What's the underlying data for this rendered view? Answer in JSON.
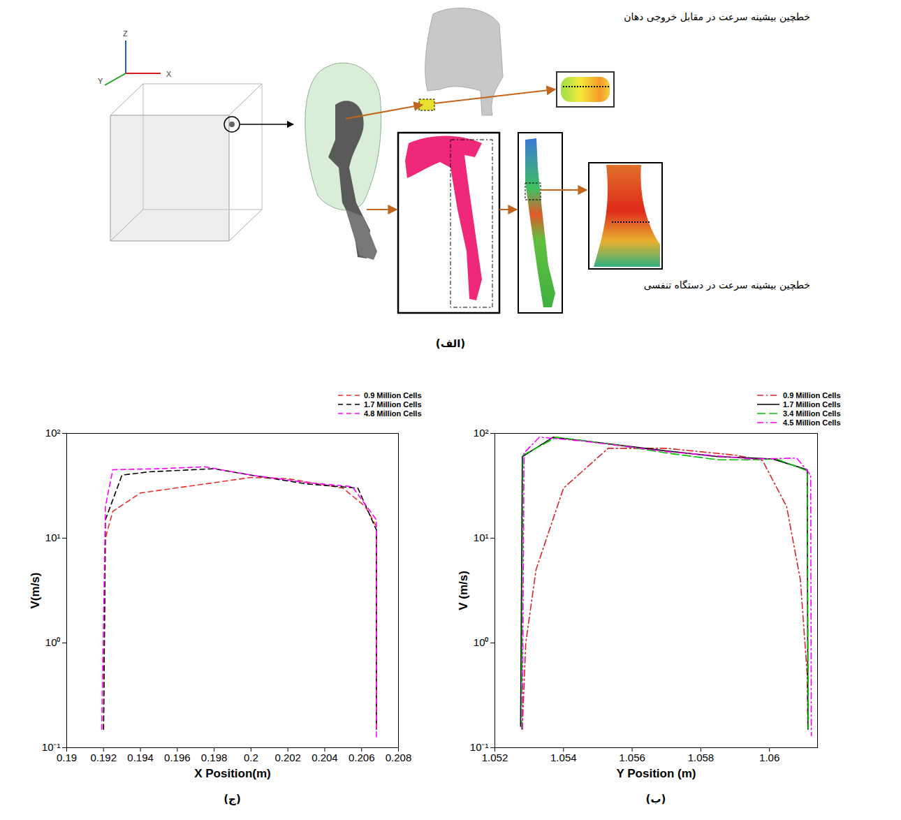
{
  "diagram": {
    "axis_letters": [
      "X",
      "Y",
      "Z"
    ],
    "annotations": [
      "خطچین بیشینه سرعت در مقابل خروجی دهان",
      "خطچین بیشینه سرعت در دستگاه تنفسی"
    ],
    "panel_label": "(الف)"
  },
  "chart_data": [
    {
      "type": "line",
      "panel_label": "(ج)",
      "x_label": "X Position(m)",
      "y_label": "V(m/s)",
      "log": "y",
      "legend": "top right",
      "xlim": [
        0.19,
        0.208
      ],
      "xticks": [
        0.19,
        0.192,
        0.194,
        0.196,
        0.198,
        0.2,
        0.202,
        0.204,
        0.206,
        0.208
      ],
      "ylim": [
        0.1,
        100
      ],
      "yticks": [
        {
          "value": 0.1,
          "label": "10⁻¹"
        },
        {
          "value": 1,
          "label": "10⁰"
        },
        {
          "value": 10,
          "label": "10¹"
        },
        {
          "value": 100,
          "label": "10²"
        }
      ],
      "series": [
        {
          "name": "0.9 Million Cells",
          "color": "#e8322a",
          "line_style": "dashed",
          "x": [
            0.192,
            0.1921,
            0.1925,
            0.194,
            0.197,
            0.2,
            0.202,
            0.205,
            0.2062,
            0.2068,
            0.2068
          ],
          "values": [
            0.15,
            10,
            18,
            27,
            32,
            38,
            37,
            30,
            20,
            13,
            0.15
          ]
        },
        {
          "name": "1.7 Million Cells",
          "color": "#000000",
          "line_style": "dashed",
          "x": [
            0.192,
            0.1921,
            0.193,
            0.1945,
            0.198,
            0.2,
            0.203,
            0.2058,
            0.2068,
            0.2068
          ],
          "values": [
            0.15,
            15,
            40,
            43,
            46,
            40,
            33,
            30,
            12,
            0.15
          ]
        },
        {
          "name": "4.8 Million Cells",
          "color": "#ff00ff",
          "line_style": "dashed",
          "x": [
            0.1919,
            0.1921,
            0.1925,
            0.195,
            0.1975,
            0.2,
            0.203,
            0.2055,
            0.2068,
            0.2068
          ],
          "values": [
            0.15,
            20,
            45,
            46,
            48,
            40,
            34,
            31,
            15,
            0.12
          ]
        }
      ]
    },
    {
      "type": "line",
      "panel_label": "(ب)",
      "x_label": "Y Position (m)",
      "y_label": "V (m/s)",
      "log": "y",
      "legend": "top right",
      "xlim": [
        1.052,
        1.0614
      ],
      "xticks": [
        1.052,
        1.054,
        1.056,
        1.058,
        1.06
      ],
      "ylim": [
        0.1,
        100
      ],
      "yticks": [
        {
          "value": 0.1,
          "label": "10⁻¹"
        },
        {
          "value": 1,
          "label": "10⁰"
        },
        {
          "value": 10,
          "label": "10¹"
        },
        {
          "value": 100,
          "label": "10²"
        }
      ],
      "series": [
        {
          "name": "0.9 Million Cells",
          "color": "#d7262b",
          "line_style": "dash-dot",
          "x": [
            1.0528,
            1.0529,
            1.0532,
            1.054,
            1.0553,
            1.057,
            1.059,
            1.0598,
            1.0605,
            1.0609,
            1.0611,
            1.06112
          ],
          "values": [
            0.15,
            1,
            5,
            30,
            72,
            72,
            62,
            55,
            20,
            4,
            0.5,
            0.15
          ]
        },
        {
          "name": "1.7 Million Cells",
          "color": "#000000",
          "line_style": "solid",
          "x": [
            1.05275,
            1.0528,
            1.0537,
            1.055,
            1.057,
            1.0585,
            1.0601,
            1.0611,
            1.06112
          ],
          "values": [
            0.16,
            60,
            92,
            82,
            68,
            60,
            57,
            45,
            0.15
          ]
        },
        {
          "name": "3.4 Million Cells",
          "color": "#00c000",
          "line_style": "long-dashed",
          "x": [
            1.05278,
            1.05282,
            1.0538,
            1.0555,
            1.057,
            1.0585,
            1.0595,
            1.0602,
            1.0611,
            1.06113
          ],
          "values": [
            0.15,
            62,
            92,
            78,
            65,
            56,
            56,
            57,
            44,
            0.15
          ]
        },
        {
          "name": "4.5 Million Cells",
          "color": "#ff00ff",
          "line_style": "dash-dot",
          "x": [
            1.0528,
            1.05285,
            1.0533,
            1.0545,
            1.057,
            1.0595,
            1.0608,
            1.0612,
            1.06122
          ],
          "values": [
            0.15,
            65,
            92,
            85,
            67,
            57,
            58,
            40,
            0.13
          ]
        }
      ]
    }
  ]
}
